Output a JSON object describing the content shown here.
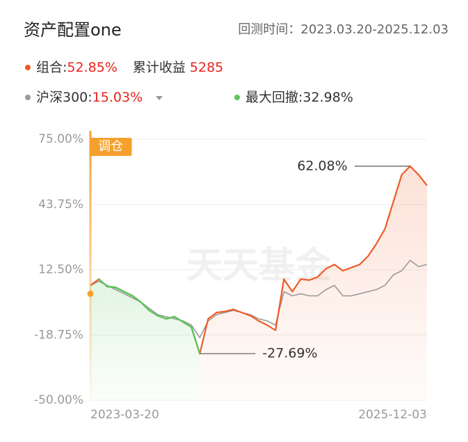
{
  "chart_data": {
    "type": "line",
    "title": "资产配置one",
    "period_label": "回测时间：",
    "period": "2023.03.20-2025.12.03",
    "legend_separator": ":",
    "cumulative_label": "累计收益",
    "cumulative_value": "5285",
    "max_drawdown": {
      "name": "最大回撤",
      "value_label": "32.98%",
      "color": "#5cc45c"
    },
    "rebalance_label": "调仓",
    "rebalance_color": "#f5a02c",
    "watermark": "天天基金",
    "categories": [
      "2023-03-20",
      null,
      null,
      null,
      null,
      null,
      null,
      null,
      null,
      null,
      null,
      null,
      null,
      null,
      null,
      null,
      null,
      null,
      null,
      null,
      null,
      null,
      null,
      null,
      null,
      null,
      null,
      null,
      null,
      null,
      null,
      null,
      null,
      null,
      null,
      null,
      null,
      null,
      null,
      null,
      "2025-12-03"
    ],
    "series": [
      {
        "name": "组合",
        "color": "#f05a24",
        "return_label": "52.85%",
        "values": [
          5,
          8,
          4.5,
          4,
          2,
          0,
          -3,
          -7,
          -9.5,
          -11,
          -10,
          -12.5,
          -15,
          -27.69,
          -11,
          -8,
          -7.5,
          -6.5,
          -8,
          -9.5,
          -12,
          -14,
          -16.5,
          8,
          2,
          8,
          7.5,
          9,
          13,
          15,
          12,
          13.5,
          15,
          19,
          25,
          32,
          45,
          58,
          62.08,
          58,
          52.85
        ]
      },
      {
        "name": "沪深300",
        "color": "#9a9a9a",
        "return_label": "15.03%",
        "values": [
          5,
          7,
          5,
          3,
          1,
          -1,
          -3,
          -6,
          -9,
          -10,
          -11,
          -12,
          -14,
          -20,
          -12,
          -9,
          -8,
          -7,
          -8,
          -9,
          -11,
          -12,
          -14,
          2,
          0,
          1,
          0,
          0,
          3,
          5,
          0,
          0,
          1,
          2,
          3,
          5,
          10,
          12,
          17,
          14,
          15.03
        ]
      }
    ],
    "annotations": [
      {
        "value": 62.08,
        "label": "62.08%"
      },
      {
        "value": -27.69,
        "label": "-27.69%"
      }
    ],
    "ylim": [
      -50,
      75
    ],
    "yticks": [
      {
        "value": -50,
        "label": "-50.00%"
      },
      {
        "value": -18.75,
        "label": "-18.75%"
      },
      {
        "value": 12.5,
        "label": "12.50%"
      },
      {
        "value": 43.75,
        "label": "43.75%"
      },
      {
        "value": 75,
        "label": "75.00%"
      }
    ],
    "grid": true,
    "value_color": "#e8231b"
  }
}
